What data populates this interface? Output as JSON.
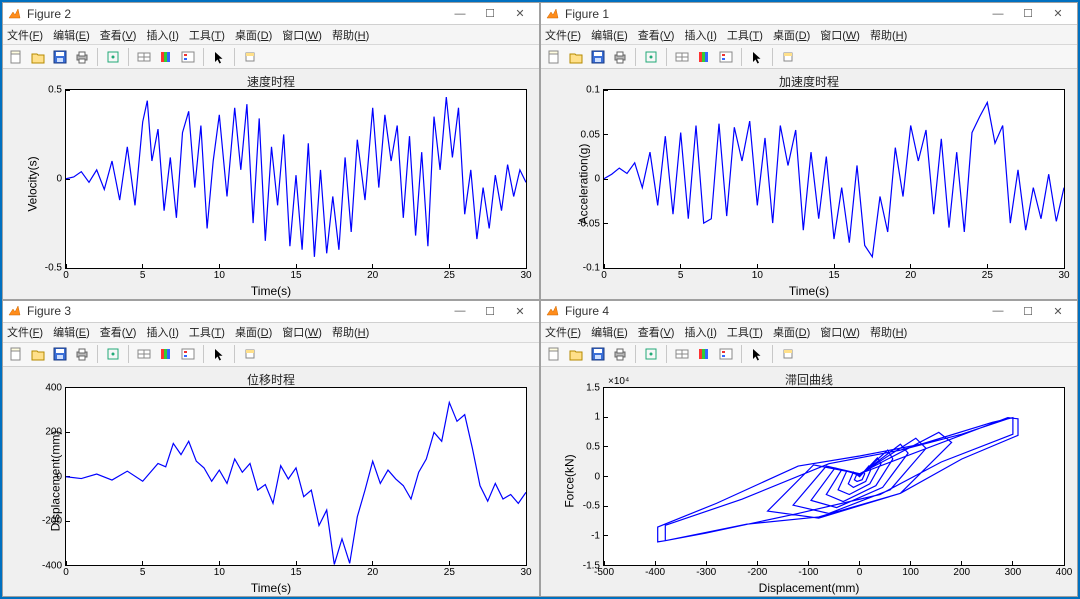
{
  "menus": [
    "文件(F)",
    "编辑(E)",
    "查看(V)",
    "插入(I)",
    "工具(T)",
    "桌面(D)",
    "窗口(W)",
    "帮助(H)"
  ],
  "toolbar_icons": [
    "new",
    "open",
    "save",
    "print",
    "sep",
    "data-cursor",
    "sep",
    "data-link",
    "colorbar",
    "legend",
    "sep",
    "pointer",
    "sep",
    "brush"
  ],
  "line_color": "#0000ff",
  "axes_bg": "#ffffff",
  "figure_bg": "#f0f0f0",
  "border_color": "#000000",
  "font_family": "Microsoft YaHei",
  "title_fontsize": 12,
  "label_fontsize": 12,
  "tick_fontsize": 10,
  "figures": {
    "f2": {
      "win_title": "Figure 2",
      "plot_title": "速度时程",
      "xlabel": "Time(s)",
      "ylabel": "Velocity(s)",
      "xlim": [
        0,
        30
      ],
      "xticks": [
        0,
        5,
        10,
        15,
        20,
        25,
        30
      ],
      "ylim": [
        -0.5,
        0.5
      ],
      "yticks": [
        -0.5,
        0,
        0.5
      ],
      "series": [
        [
          0,
          0
        ],
        [
          0.5,
          0.01
        ],
        [
          1,
          0.04
        ],
        [
          1.5,
          -0.02
        ],
        [
          2,
          0.05
        ],
        [
          2.5,
          -0.06
        ],
        [
          3,
          0.1
        ],
        [
          3.5,
          -0.12
        ],
        [
          4,
          0.18
        ],
        [
          4.5,
          -0.15
        ],
        [
          5,
          0.32
        ],
        [
          5.3,
          0.44
        ],
        [
          5.6,
          0.1
        ],
        [
          6,
          0.28
        ],
        [
          6.4,
          -0.18
        ],
        [
          6.8,
          0.12
        ],
        [
          7.2,
          -0.22
        ],
        [
          7.6,
          0.26
        ],
        [
          8,
          0.38
        ],
        [
          8.4,
          -0.05
        ],
        [
          8.8,
          0.3
        ],
        [
          9.2,
          -0.28
        ],
        [
          9.6,
          0.1
        ],
        [
          10,
          0.36
        ],
        [
          10.5,
          -0.1
        ],
        [
          11,
          0.4
        ],
        [
          11.4,
          0.05
        ],
        [
          11.8,
          0.42
        ],
        [
          12.2,
          -0.25
        ],
        [
          12.6,
          0.34
        ],
        [
          13,
          -0.35
        ],
        [
          13.4,
          0.18
        ],
        [
          13.8,
          -0.15
        ],
        [
          14.2,
          0.25
        ],
        [
          14.6,
          -0.38
        ],
        [
          15,
          0.02
        ],
        [
          15.4,
          -0.4
        ],
        [
          15.8,
          0.2
        ],
        [
          16.2,
          -0.44
        ],
        [
          16.6,
          0.05
        ],
        [
          17,
          -0.42
        ],
        [
          17.4,
          -0.1
        ],
        [
          17.8,
          -0.4
        ],
        [
          18.2,
          0.12
        ],
        [
          18.6,
          -0.3
        ],
        [
          19,
          0.22
        ],
        [
          19.5,
          -0.12
        ],
        [
          20,
          0.4
        ],
        [
          20.4,
          -0.05
        ],
        [
          20.8,
          0.36
        ],
        [
          21.2,
          0.1
        ],
        [
          21.6,
          0.3
        ],
        [
          22,
          -0.22
        ],
        [
          22.4,
          0.24
        ],
        [
          22.8,
          -0.32
        ],
        [
          23.2,
          0.15
        ],
        [
          23.6,
          -0.38
        ],
        [
          24,
          0.35
        ],
        [
          24.4,
          0.05
        ],
        [
          24.8,
          0.46
        ],
        [
          25.2,
          0.12
        ],
        [
          25.6,
          0.4
        ],
        [
          26,
          -0.2
        ],
        [
          26.4,
          0.05
        ],
        [
          26.8,
          -0.34
        ],
        [
          27.2,
          -0.05
        ],
        [
          27.6,
          -0.28
        ],
        [
          28,
          0.02
        ],
        [
          28.4,
          -0.18
        ],
        [
          28.8,
          0.08
        ],
        [
          29.2,
          -0.1
        ],
        [
          29.6,
          0.05
        ],
        [
          30,
          -0.02
        ]
      ]
    },
    "f1": {
      "win_title": "Figure 1",
      "plot_title": "加速度时程",
      "xlabel": "Time(s)",
      "ylabel": "Acceleration(g)",
      "xlim": [
        0,
        30
      ],
      "xticks": [
        0,
        5,
        10,
        15,
        20,
        25,
        30
      ],
      "ylim": [
        -0.1,
        0.1
      ],
      "yticks": [
        -0.1,
        -0.05,
        0,
        0.05,
        0.1
      ],
      "series": [
        [
          0,
          0
        ],
        [
          0.5,
          0.005
        ],
        [
          1,
          0.012
        ],
        [
          1.5,
          0.006
        ],
        [
          2,
          0.018
        ],
        [
          2.5,
          -0.01
        ],
        [
          3,
          0.03
        ],
        [
          3.5,
          -0.03
        ],
        [
          4,
          0.048
        ],
        [
          4.5,
          -0.04
        ],
        [
          5,
          0.052
        ],
        [
          5.5,
          -0.045
        ],
        [
          6,
          0.06
        ],
        [
          6.5,
          -0.05
        ],
        [
          7,
          -0.045
        ],
        [
          7.5,
          0.062
        ],
        [
          8,
          -0.042
        ],
        [
          8.5,
          0.058
        ],
        [
          9,
          0.02
        ],
        [
          9.5,
          0.065
        ],
        [
          10,
          -0.03
        ],
        [
          10.5,
          0.046
        ],
        [
          11,
          -0.05
        ],
        [
          11.5,
          0.06
        ],
        [
          12,
          0.015
        ],
        [
          12.5,
          0.055
        ],
        [
          13,
          -0.058
        ],
        [
          13.5,
          0.03
        ],
        [
          14,
          -0.045
        ],
        [
          14.5,
          0.025
        ],
        [
          15,
          -0.068
        ],
        [
          15.5,
          -0.01
        ],
        [
          16,
          -0.072
        ],
        [
          16.5,
          0.015
        ],
        [
          17,
          -0.075
        ],
        [
          17.5,
          -0.088
        ],
        [
          18,
          -0.02
        ],
        [
          18.5,
          -0.06
        ],
        [
          19,
          0.035
        ],
        [
          19.5,
          -0.02
        ],
        [
          20,
          0.06
        ],
        [
          20.5,
          0.02
        ],
        [
          21,
          0.055
        ],
        [
          21.5,
          -0.04
        ],
        [
          22,
          0.045
        ],
        [
          22.5,
          -0.055
        ],
        [
          23,
          0.03
        ],
        [
          23.5,
          -0.06
        ],
        [
          24,
          0.052
        ],
        [
          24.5,
          0.07
        ],
        [
          25,
          0.086
        ],
        [
          25.5,
          0.04
        ],
        [
          26,
          0.06
        ],
        [
          26.5,
          -0.05
        ],
        [
          27,
          0.01
        ],
        [
          27.5,
          -0.058
        ],
        [
          28,
          -0.01
        ],
        [
          28.5,
          -0.045
        ],
        [
          29,
          0.005
        ],
        [
          29.5,
          -0.048
        ],
        [
          30,
          -0.01
        ]
      ]
    },
    "f3": {
      "win_title": "Figure 3",
      "plot_title": "位移时程",
      "xlabel": "Time(s)",
      "ylabel": "Displacement(mm)",
      "xlim": [
        0,
        30
      ],
      "xticks": [
        0,
        5,
        10,
        15,
        20,
        25,
        30
      ],
      "ylim": [
        -400,
        400
      ],
      "yticks": [
        -400,
        -200,
        0,
        200,
        400
      ],
      "series": [
        [
          0,
          0
        ],
        [
          1,
          -8
        ],
        [
          2,
          12
        ],
        [
          3,
          -15
        ],
        [
          4,
          25
        ],
        [
          5,
          -20
        ],
        [
          6,
          60
        ],
        [
          6.5,
          45
        ],
        [
          7,
          150
        ],
        [
          7.5,
          100
        ],
        [
          8,
          160
        ],
        [
          8.5,
          70
        ],
        [
          9,
          40
        ],
        [
          9.5,
          -20
        ],
        [
          10,
          30
        ],
        [
          10.5,
          -30
        ],
        [
          11,
          80
        ],
        [
          11.5,
          20
        ],
        [
          12,
          60
        ],
        [
          12.5,
          -60
        ],
        [
          13,
          -35
        ],
        [
          13.5,
          -120
        ],
        [
          14,
          50
        ],
        [
          14.5,
          -10
        ],
        [
          15,
          40
        ],
        [
          15.5,
          -90
        ],
        [
          16,
          -60
        ],
        [
          16.5,
          -220
        ],
        [
          17,
          -150
        ],
        [
          17.5,
          -395
        ],
        [
          18,
          -280
        ],
        [
          18.5,
          -390
        ],
        [
          19,
          -180
        ],
        [
          19.5,
          -60
        ],
        [
          20,
          70
        ],
        [
          20.5,
          -30
        ],
        [
          21,
          30
        ],
        [
          21.5,
          -10
        ],
        [
          22,
          -40
        ],
        [
          22.5,
          -100
        ],
        [
          23,
          20
        ],
        [
          23.5,
          80
        ],
        [
          24,
          200
        ],
        [
          24.5,
          160
        ],
        [
          25,
          335
        ],
        [
          25.5,
          250
        ],
        [
          26,
          280
        ],
        [
          26.5,
          130
        ],
        [
          27,
          -40
        ],
        [
          27.5,
          -110
        ],
        [
          28,
          -30
        ],
        [
          28.5,
          -100
        ],
        [
          29,
          -80
        ],
        [
          29.5,
          -120
        ],
        [
          30,
          -70
        ]
      ]
    },
    "f4": {
      "win_title": "Figure 4",
      "plot_title": "滞回曲线",
      "xlabel": "Displacement(mm)",
      "ylabel": "Force(kN)",
      "y_exponent": "×10⁴",
      "xlim": [
        -500,
        400
      ],
      "xticks": [
        -500,
        -400,
        -300,
        -200,
        -100,
        0,
        100,
        200,
        300,
        400
      ],
      "ylim": [
        -1.5,
        1.5
      ],
      "yticks": [
        -1.5,
        -1,
        -0.5,
        0,
        0.5,
        1,
        1.5
      ],
      "series": [
        [
          0,
          0
        ],
        [
          8,
          0.08
        ],
        [
          10,
          0.05
        ],
        [
          5,
          -0.05
        ],
        [
          -5,
          -0.08
        ],
        [
          -10,
          -0.05
        ],
        [
          -5,
          0.05
        ],
        [
          0,
          0
        ],
        [
          18,
          0.18
        ],
        [
          22,
          0.12
        ],
        [
          12,
          -0.08
        ],
        [
          -12,
          -0.18
        ],
        [
          -22,
          -0.12
        ],
        [
          -12,
          0.08
        ],
        [
          0,
          0
        ],
        [
          35,
          0.32
        ],
        [
          42,
          0.22
        ],
        [
          20,
          -0.12
        ],
        [
          -20,
          -0.3
        ],
        [
          -42,
          -0.22
        ],
        [
          -25,
          0.1
        ],
        [
          0,
          0.02
        ],
        [
          55,
          0.45
        ],
        [
          65,
          0.3
        ],
        [
          32,
          -0.15
        ],
        [
          -32,
          -0.42
        ],
        [
          -65,
          -0.3
        ],
        [
          -35,
          0.12
        ],
        [
          0,
          0.03
        ],
        [
          80,
          0.55
        ],
        [
          95,
          0.4
        ],
        [
          45,
          -0.18
        ],
        [
          -45,
          -0.52
        ],
        [
          -95,
          -0.4
        ],
        [
          -48,
          0.15
        ],
        [
          0,
          0.04
        ],
        [
          110,
          0.65
        ],
        [
          130,
          0.48
        ],
        [
          60,
          -0.22
        ],
        [
          -60,
          -0.62
        ],
        [
          -130,
          -0.48
        ],
        [
          -65,
          0.18
        ],
        [
          0,
          0.05
        ],
        [
          155,
          0.75
        ],
        [
          180,
          0.58
        ],
        [
          80,
          -0.28
        ],
        [
          -80,
          -0.7
        ],
        [
          -180,
          -0.58
        ],
        [
          -90,
          0.2
        ],
        [
          0,
          0.05
        ],
        [
          290,
          1.0
        ],
        [
          310,
          0.98
        ],
        [
          310,
          0.7
        ],
        [
          200,
          0.3
        ],
        [
          80,
          -0.28
        ],
        [
          -80,
          -0.68
        ],
        [
          -220,
          -0.8
        ],
        [
          -380,
          -1.08
        ],
        [
          -395,
          -1.1
        ],
        [
          -395,
          -0.85
        ],
        [
          -280,
          -0.45
        ],
        [
          -120,
          0.18
        ],
        [
          0,
          0.35
        ],
        [
          120,
          0.55
        ],
        [
          260,
          0.92
        ],
        [
          300,
          1.0
        ],
        [
          300,
          0.72
        ],
        [
          160,
          0.25
        ],
        [
          40,
          -0.3
        ],
        [
          -120,
          -0.62
        ],
        [
          -300,
          -0.95
        ],
        [
          -380,
          -1.08
        ],
        [
          -380,
          -0.82
        ],
        [
          -230,
          -0.38
        ],
        [
          -60,
          0.22
        ],
        [
          80,
          0.45
        ],
        [
          200,
          0.72
        ],
        [
          290,
          0.98
        ]
      ]
    }
  }
}
